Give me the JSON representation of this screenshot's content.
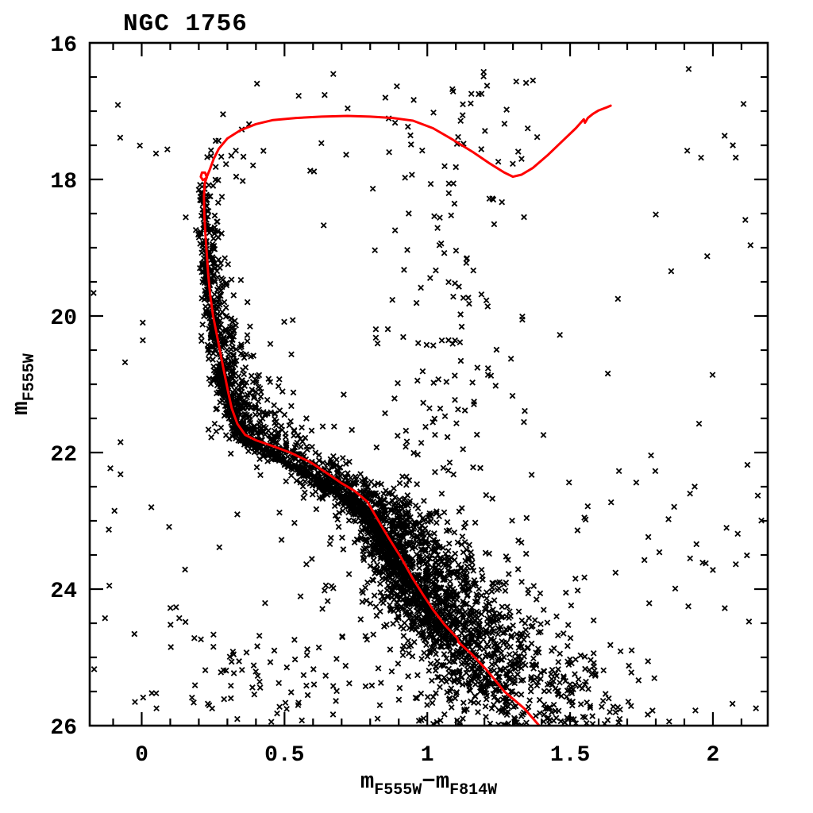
{
  "chart_data": {
    "type": "scatter",
    "title": "NGC 1756",
    "xlabel_parts": [
      {
        "t": "m",
        "sub": false
      },
      {
        "t": "F555W",
        "sub": true
      },
      {
        "t": "−",
        "sub": false
      },
      {
        "t": "m",
        "sub": false
      },
      {
        "t": "F814W",
        "sub": true
      }
    ],
    "ylabel_parts": [
      {
        "t": "m",
        "sub": false
      },
      {
        "t": "F555W",
        "sub": true
      }
    ],
    "xlim": [
      -0.182,
      2.192
    ],
    "ylim": [
      16,
      26
    ],
    "y_inverted": true,
    "grid": false,
    "legend": "none",
    "x_major_ticks": [
      0,
      0.5,
      1,
      1.5,
      2
    ],
    "x_tick_labels": [
      "0",
      "0.5",
      "1",
      "1.5",
      "2"
    ],
    "x_minor_step": 0.1,
    "y_major_ticks": [
      16,
      18,
      20,
      22,
      24,
      26
    ],
    "y_tick_labels": [
      "16",
      "18",
      "20",
      "22",
      "24",
      "26"
    ],
    "y_minor_step": 0.5,
    "marker": "x-cross",
    "colors": {
      "background": "#ffffff",
      "frame": "#000000",
      "marker": "#000000",
      "isochrone": "#ff0000",
      "text": "#000000"
    },
    "isochrone": [
      [
        1.392,
        26.0
      ],
      [
        1.34,
        25.75
      ],
      [
        1.27,
        25.5
      ],
      [
        1.205,
        25.17
      ],
      [
        1.155,
        24.95
      ],
      [
        1.11,
        24.78
      ],
      [
        1.105,
        24.72
      ],
      [
        1.06,
        24.52
      ],
      [
        1.02,
        24.3
      ],
      [
        0.985,
        24.08
      ],
      [
        0.95,
        23.85
      ],
      [
        0.91,
        23.55
      ],
      [
        0.865,
        23.25
      ],
      [
        0.825,
        22.97
      ],
      [
        0.79,
        22.72
      ],
      [
        0.745,
        22.56
      ],
      [
        0.7,
        22.45
      ],
      [
        0.655,
        22.32
      ],
      [
        0.59,
        22.14
      ],
      [
        0.52,
        22.0
      ],
      [
        0.455,
        21.9
      ],
      [
        0.4,
        21.82
      ],
      [
        0.362,
        21.74
      ],
      [
        0.335,
        21.58
      ],
      [
        0.315,
        21.35
      ],
      [
        0.303,
        21.12
      ],
      [
        0.29,
        20.85
      ],
      [
        0.278,
        20.6
      ],
      [
        0.262,
        20.25
      ],
      [
        0.25,
        20.0
      ],
      [
        0.24,
        19.7
      ],
      [
        0.233,
        19.4
      ],
      [
        0.228,
        19.1
      ],
      [
        0.223,
        18.8
      ],
      [
        0.219,
        18.5
      ],
      [
        0.218,
        18.25
      ],
      [
        0.221,
        18.05
      ],
      [
        0.228,
        17.97
      ],
      [
        0.222,
        17.9
      ],
      [
        0.211,
        17.9
      ],
      [
        0.207,
        17.96
      ],
      [
        0.214,
        18.01
      ],
      [
        0.226,
        17.98
      ],
      [
        0.238,
        17.86
      ],
      [
        0.252,
        17.7
      ],
      [
        0.27,
        17.55
      ],
      [
        0.3,
        17.4
      ],
      [
        0.345,
        17.28
      ],
      [
        0.4,
        17.19
      ],
      [
        0.46,
        17.13
      ],
      [
        0.54,
        17.1
      ],
      [
        0.63,
        17.08
      ],
      [
        0.72,
        17.07
      ],
      [
        0.8,
        17.08
      ],
      [
        0.88,
        17.1
      ],
      [
        0.95,
        17.14
      ],
      [
        1.02,
        17.25
      ],
      [
        1.09,
        17.42
      ],
      [
        1.16,
        17.6
      ],
      [
        1.22,
        17.77
      ],
      [
        1.27,
        17.9
      ],
      [
        1.3,
        17.96
      ],
      [
        1.33,
        17.93
      ],
      [
        1.37,
        17.83
      ],
      [
        1.42,
        17.65
      ],
      [
        1.47,
        17.45
      ],
      [
        1.52,
        17.25
      ],
      [
        1.548,
        17.12
      ],
      [
        1.552,
        17.17
      ],
      [
        1.562,
        17.1
      ],
      [
        1.58,
        17.04
      ],
      [
        1.6,
        16.99
      ],
      [
        1.625,
        16.95
      ],
      [
        1.642,
        16.92
      ]
    ],
    "scatter_model": {
      "seed": 1756042,
      "ms_ridge": [
        [
          18.0,
          0.221
        ],
        [
          18.5,
          0.218
        ],
        [
          19.0,
          0.227
        ],
        [
          19.5,
          0.236
        ],
        [
          20.0,
          0.25
        ],
        [
          20.6,
          0.278
        ],
        [
          21.2,
          0.307
        ],
        [
          21.8,
          0.37
        ],
        [
          22.1,
          0.5
        ],
        [
          22.4,
          0.63
        ],
        [
          22.8,
          0.78
        ],
        [
          23.2,
          0.86
        ],
        [
          23.6,
          0.91
        ],
        [
          24.0,
          0.97
        ],
        [
          24.5,
          1.06
        ],
        [
          25.0,
          1.18
        ],
        [
          25.5,
          1.27
        ],
        [
          26.0,
          1.39
        ]
      ],
      "ms_bins": [
        [
          18.05,
          18.6,
          40,
          0.01,
          0.022
        ],
        [
          18.6,
          19.2,
          65,
          0.012,
          0.028
        ],
        [
          19.2,
          20.0,
          115,
          0.014,
          0.04
        ],
        [
          20.0,
          20.8,
          170,
          0.016,
          0.055
        ],
        [
          20.8,
          21.6,
          290,
          0.02,
          0.075
        ],
        [
          21.6,
          22.4,
          430,
          0.025,
          0.095
        ],
        [
          22.4,
          23.2,
          560,
          0.035,
          0.115
        ],
        [
          23.2,
          24.0,
          630,
          0.05,
          0.135
        ],
        [
          24.0,
          24.8,
          570,
          0.085,
          0.16
        ],
        [
          24.8,
          25.5,
          340,
          0.11,
          0.19
        ],
        [
          25.5,
          26.0,
          150,
          0.14,
          0.22
        ]
      ],
      "outlier_frac": 0.055,
      "outlier_scale": 2.8,
      "rgb_band": {
        "count": 125,
        "color_center": 1.07,
        "color_sigma": 0.13,
        "color_min": 0.82,
        "color_max": 1.5,
        "mag_min": 16.4,
        "mag_max": 22.3,
        "faint_bias": 0.75
      },
      "upper_scatter": {
        "count": 30,
        "color_min": 0.32,
        "color_max": 1.38,
        "mag_min": 16.35,
        "mag_max": 18.7
      },
      "turnoff_plume": {
        "count": 16,
        "color_min": 0.22,
        "color_max": 0.36,
        "mag_min": 17.25,
        "mag_max": 18.05
      },
      "field_bright": {
        "count": 38,
        "color_min": -0.17,
        "color_max": 2.17,
        "mag_min": 16.3,
        "mag_max": 21.5
      },
      "field_faint": {
        "count": 150,
        "color_min": -0.17,
        "color_max": 2.17,
        "mag_min": 21.5,
        "mag_max": 25.95
      },
      "faint_spray": {
        "count": 60,
        "color_min": 0.2,
        "color_max": 1.05,
        "mag_min": 24.6,
        "mag_max": 25.98
      },
      "faint_left": {
        "count": 13,
        "color_min": -0.12,
        "color_max": 0.35,
        "mag_min": 24.2,
        "mag_max": 25.95
      },
      "extra_points": [
        [
          2.07,
          17.5
        ],
        [
          2.08,
          17.68
        ],
        [
          1.37,
          16.55
        ],
        [
          1.18,
          16.75
        ],
        [
          0.05,
          17.62
        ],
        [
          0.09,
          17.56
        ],
        [
          1.92,
          23.55
        ],
        [
          2.0,
          23.72
        ]
      ]
    }
  }
}
